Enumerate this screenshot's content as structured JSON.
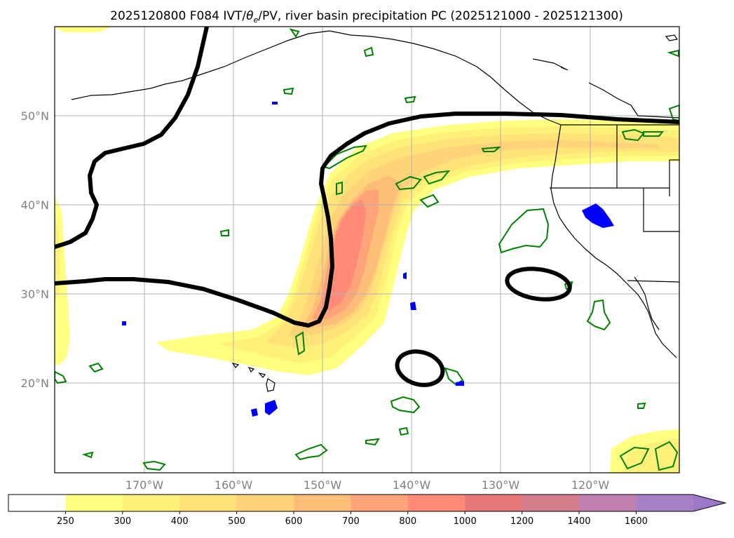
{
  "title_prefix": "2025120800 F084 IVT/",
  "title_theta": "θ",
  "title_theta_sub": "e",
  "title_suffix": "/PV, river basin precipitation PC (2025121000 - 2025121300)",
  "lat_labels": [
    "50°N",
    "40°N",
    "30°N",
    "20°N"
  ],
  "lon_labels": [
    "170°W",
    "160°W",
    "150°W",
    "140°W",
    "130°W",
    "120°W"
  ],
  "colorbar": {
    "ticks": [
      "250",
      "300",
      "400",
      "500",
      "600",
      "700",
      "800",
      "1000",
      "1200",
      "1400",
      "1600"
    ],
    "colors": [
      "#ffffff",
      "#ffff80",
      "#fff07a",
      "#ffe278",
      "#ffd478",
      "#ffbe78",
      "#ffa478",
      "#ff8a78",
      "#e8787a",
      "#d47c8c",
      "#c080b0",
      "#a880c8"
    ]
  }
}
